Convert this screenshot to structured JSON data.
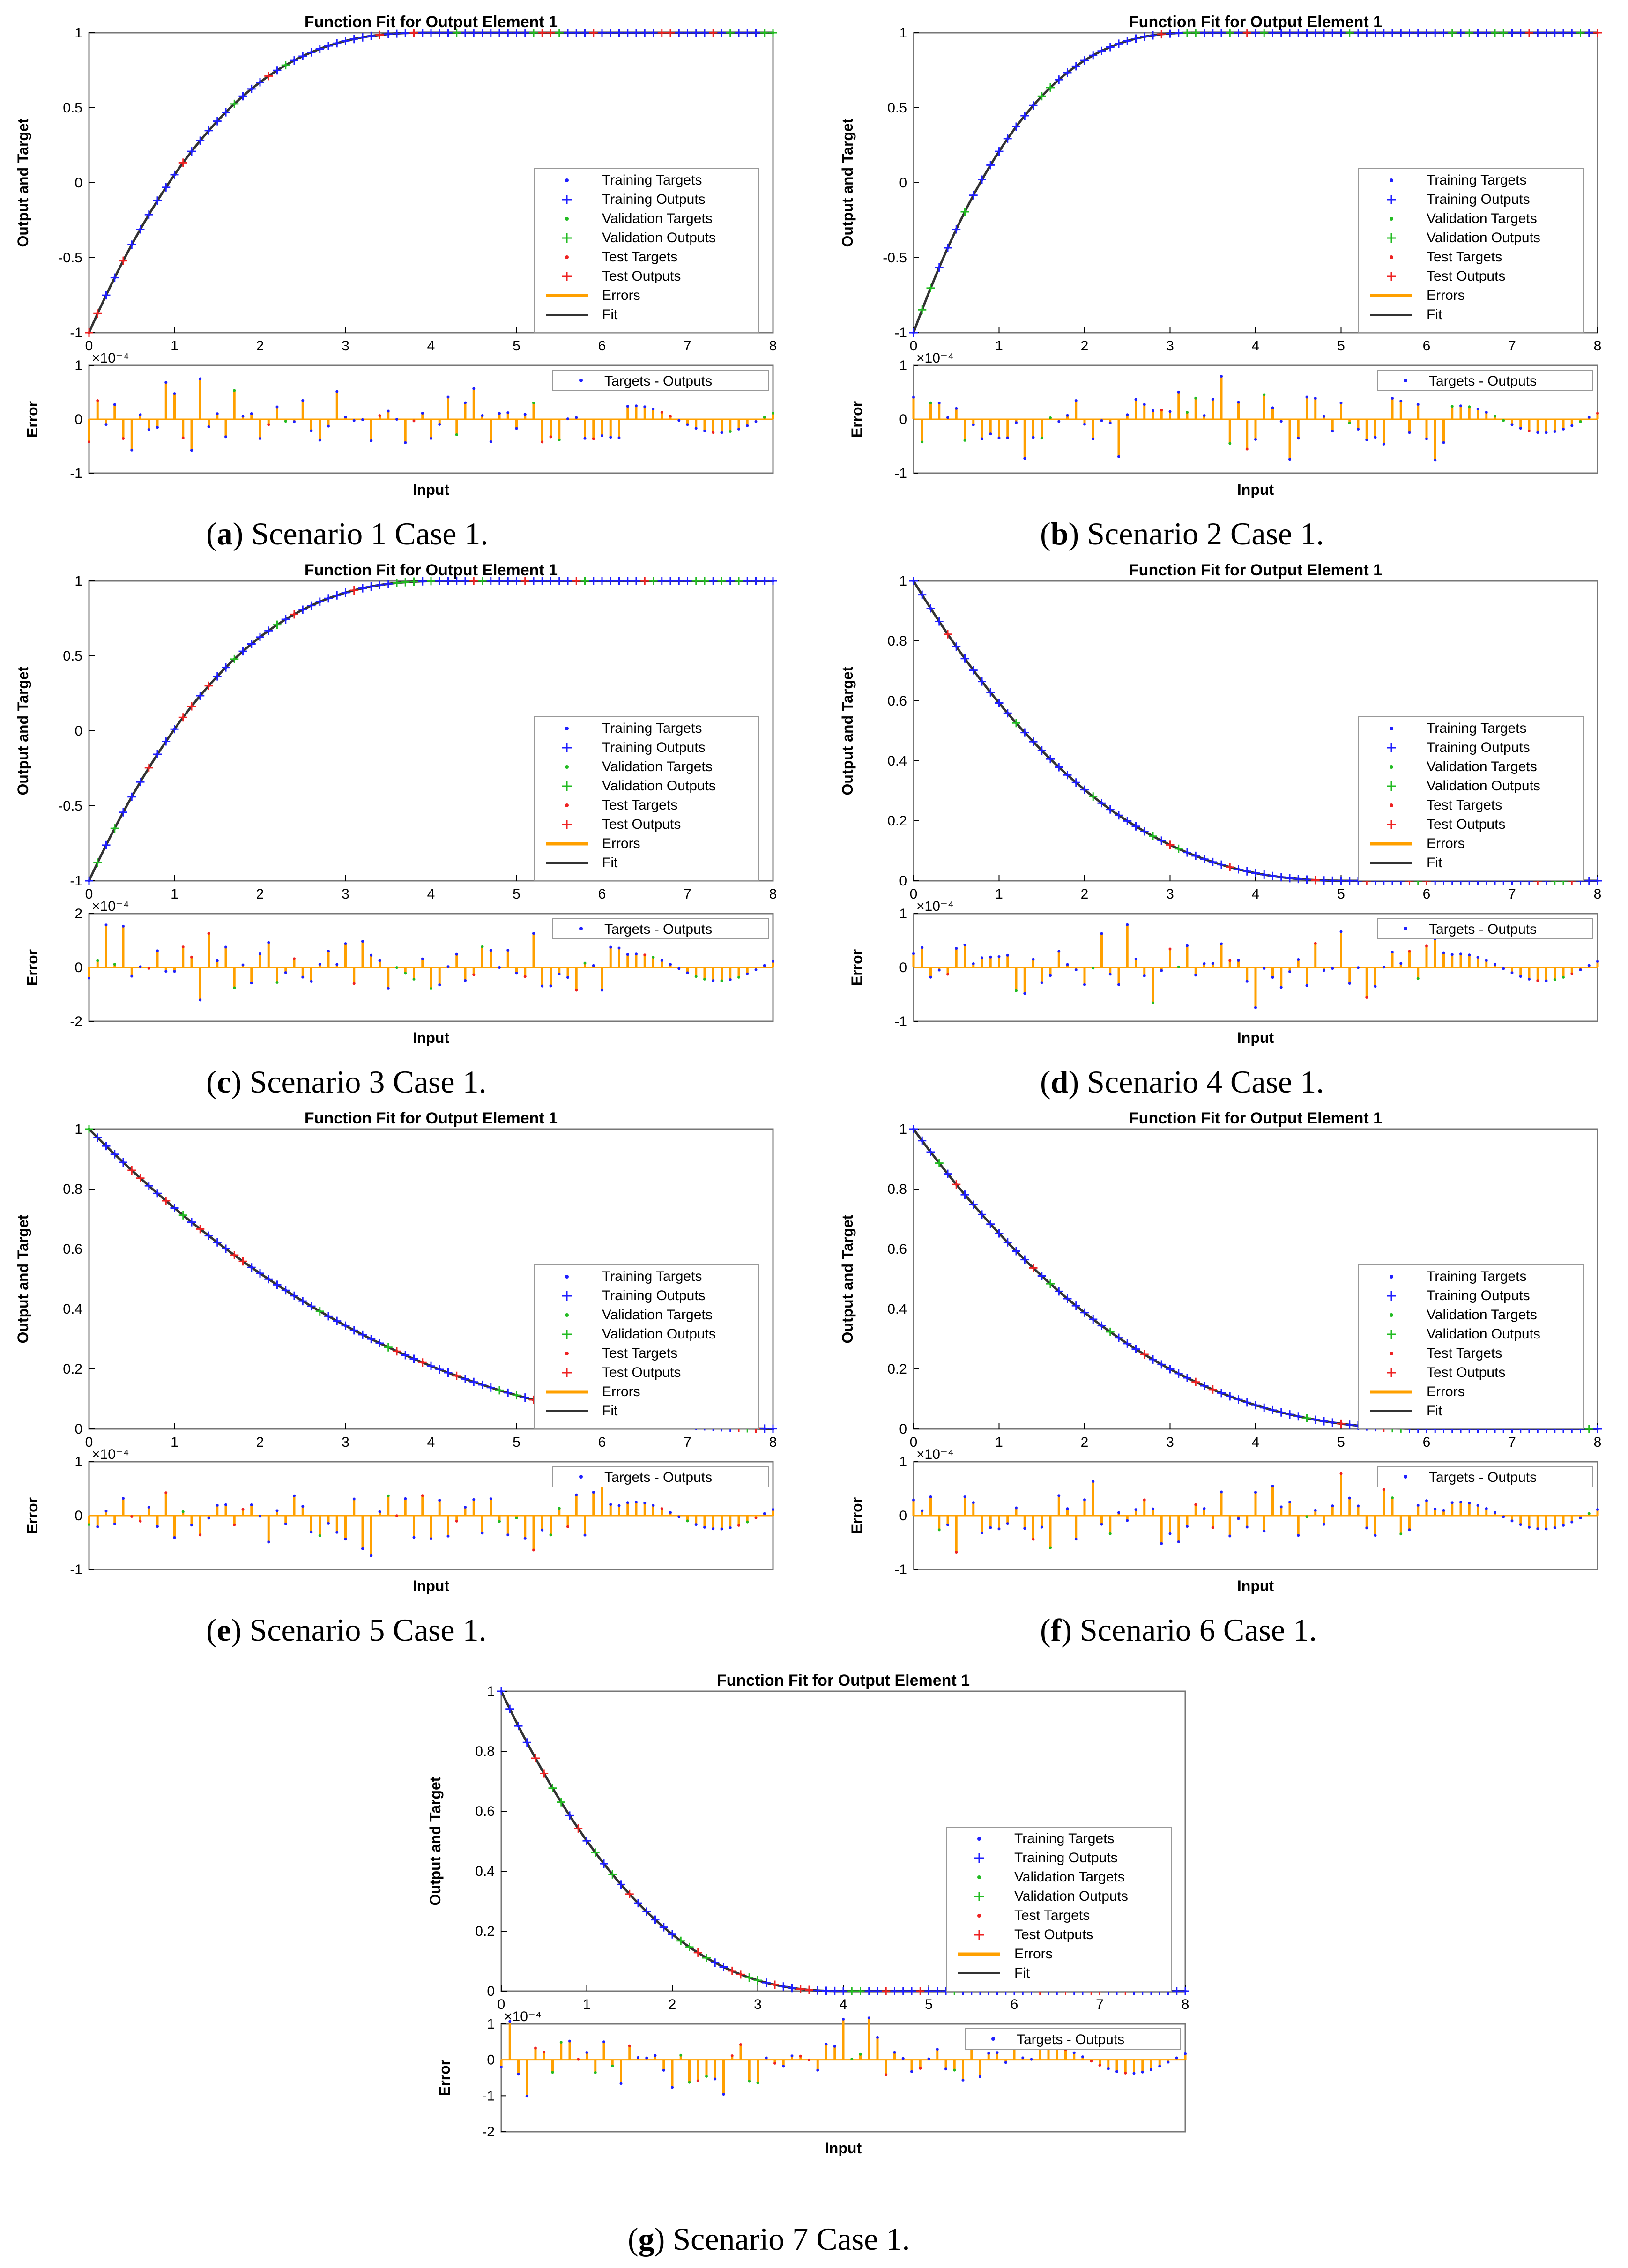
{
  "figure": {
    "colors": {
      "training": "#1f1fff",
      "validation": "#22bb22",
      "test": "#ee2222",
      "errors": "#ffa000",
      "fit": "#333333",
      "axis": "#000000"
    }
  },
  "chart_data": [
    {
      "id": "a",
      "type": "line",
      "title": "Function Fit for Output Element 1",
      "ylabel": "Output and Target",
      "xlabel": "Input",
      "err_ylabel": "Error",
      "err_scale": "×10⁻⁴",
      "xlim": [
        0,
        8
      ],
      "ylim": [
        -1,
        1
      ],
      "xticks": [
        "0",
        "1",
        "2",
        "3",
        "4",
        "5",
        "6",
        "7",
        "8"
      ],
      "yticks": [
        "-1",
        "-0.5",
        "0",
        "0.5",
        "1"
      ],
      "err_ylim": [
        -1,
        1
      ],
      "err_yticks": [
        "-1",
        "0",
        "1"
      ],
      "curve": "rise",
      "rate": 1.0,
      "legend": [
        "Training Targets",
        "Training Outputs",
        "Validation Targets",
        "Validation Outputs",
        "Test Targets",
        "Test Outputs",
        "Errors",
        "Fit"
      ],
      "err_legend": "Targets - Outputs",
      "caption_letter": "a",
      "caption_text": " Scenario 1 Case 1."
    },
    {
      "id": "b",
      "type": "line",
      "title": "Function Fit for Output Element 1",
      "ylabel": "Output and Target",
      "xlabel": "Input",
      "err_ylabel": "Error",
      "err_scale": "×10⁻⁴",
      "xlim": [
        0,
        8
      ],
      "ylim": [
        -1,
        1
      ],
      "xticks": [
        "0",
        "1",
        "2",
        "3",
        "4",
        "5",
        "6",
        "7",
        "8"
      ],
      "yticks": [
        "-1",
        "-0.5",
        "0",
        "0.5",
        "1"
      ],
      "err_ylim": [
        -1,
        1
      ],
      "err_yticks": [
        "-1",
        "0",
        "1"
      ],
      "curve": "rise",
      "rate": 1.2,
      "legend": [
        "Training Targets",
        "Training Outputs",
        "Validation Targets",
        "Validation Outputs",
        "Test Targets",
        "Test Outputs",
        "Errors",
        "Fit"
      ],
      "err_legend": "Targets - Outputs",
      "caption_letter": "b",
      "caption_text": " Scenario 2 Case 1."
    },
    {
      "id": "c",
      "type": "line",
      "title": "Function Fit for Output Element 1",
      "ylabel": "Output and Target",
      "xlabel": "Input",
      "err_ylabel": "Error",
      "err_scale": "×10⁻⁴",
      "xlim": [
        0,
        8
      ],
      "ylim": [
        -1,
        1
      ],
      "xticks": [
        "0",
        "1",
        "2",
        "3",
        "4",
        "5",
        "6",
        "7",
        "8"
      ],
      "yticks": [
        "-1",
        "-0.5",
        "0",
        "0.5",
        "1"
      ],
      "err_ylim": [
        -2,
        2
      ],
      "err_yticks": [
        "-2",
        "0",
        "2"
      ],
      "curve": "rise",
      "rate": 0.95,
      "legend": [
        "Training Targets",
        "Training Outputs",
        "Validation Targets",
        "Validation Outputs",
        "Test Targets",
        "Test Outputs",
        "Errors",
        "Fit"
      ],
      "err_legend": "Targets - Outputs",
      "caption_letter": "c",
      "caption_text": " Scenario 3 Case 1."
    },
    {
      "id": "d",
      "type": "line",
      "title": "Function Fit for Output Element 1",
      "ylabel": "Output and Target",
      "xlabel": "Input",
      "err_ylabel": "Error",
      "err_scale": "×10⁻⁴",
      "xlim": [
        0,
        8
      ],
      "ylim": [
        0,
        1
      ],
      "xticks": [
        "0",
        "1",
        "2",
        "3",
        "4",
        "5",
        "6",
        "7",
        "8"
      ],
      "yticks": [
        "0",
        "0.2",
        "0.4",
        "0.6",
        "0.8",
        "1"
      ],
      "err_ylim": [
        -1,
        1
      ],
      "err_yticks": [
        "-1",
        "0",
        "1"
      ],
      "curve": "decay",
      "rate": 0.9,
      "legend": [
        "Training Targets",
        "Training Outputs",
        "Validation Targets",
        "Validation Outputs",
        "Test Targets",
        "Test Outputs",
        "Errors",
        "Fit"
      ],
      "err_legend": "Targets - Outputs",
      "caption_letter": "d",
      "caption_text": " Scenario 4 Case 1."
    },
    {
      "id": "e",
      "type": "line",
      "title": "Function Fit for Output Element 1",
      "ylabel": "Output and Target",
      "xlabel": "Input",
      "err_ylabel": "Error",
      "err_scale": "×10⁻⁴",
      "xlim": [
        0,
        8
      ],
      "ylim": [
        0,
        1
      ],
      "xticks": [
        "0",
        "1",
        "2",
        "3",
        "4",
        "5",
        "6",
        "7",
        "8"
      ],
      "yticks": [
        "0",
        "0.2",
        "0.4",
        "0.6",
        "0.8",
        "1"
      ],
      "err_ylim": [
        -1,
        1
      ],
      "err_yticks": [
        "-1",
        "0",
        "1"
      ],
      "curve": "decay",
      "rate": 0.55,
      "legend": [
        "Training Targets",
        "Training Outputs",
        "Validation Targets",
        "Validation Outputs",
        "Test Targets",
        "Test Outputs",
        "Errors",
        "Fit"
      ],
      "err_legend": "Targets - Outputs",
      "caption_letter": "e",
      "caption_text": " Scenario 5 Case 1."
    },
    {
      "id": "f",
      "type": "line",
      "title": "Function Fit for Output Element 1",
      "ylabel": "Output and Target",
      "xlabel": "Input",
      "err_ylabel": "Error",
      "err_scale": "×10⁻⁴",
      "xlim": [
        0,
        8
      ],
      "ylim": [
        0,
        1
      ],
      "xticks": [
        "0",
        "1",
        "2",
        "3",
        "4",
        "5",
        "6",
        "7",
        "8"
      ],
      "yticks": [
        "0",
        "0.2",
        "0.4",
        "0.6",
        "0.8",
        "1"
      ],
      "err_ylim": [
        -1,
        1
      ],
      "err_yticks": [
        "-1",
        "0",
        "1"
      ],
      "curve": "decay",
      "rate": 0.75,
      "legend": [
        "Training Targets",
        "Training Outputs",
        "Validation Targets",
        "Validation Outputs",
        "Test Targets",
        "Test Outputs",
        "Errors",
        "Fit"
      ],
      "err_legend": "Targets - Outputs",
      "caption_letter": "f",
      "caption_text": " Scenario 6 Case 1."
    },
    {
      "id": "g",
      "type": "line",
      "title": "Function Fit for Output Element 1",
      "ylabel": "Output and Target",
      "xlabel": "Input",
      "err_ylabel": "Error",
      "err_scale": "×10⁻⁴",
      "xlim": [
        0,
        8
      ],
      "ylim": [
        0,
        1
      ],
      "xticks": [
        "0",
        "1",
        "2",
        "3",
        "4",
        "5",
        "6",
        "7",
        "8"
      ],
      "yticks": [
        "0",
        "0.2",
        "0.4",
        "0.6",
        "0.8",
        "1"
      ],
      "err_ylim": [
        -2,
        1
      ],
      "err_yticks": [
        "-2",
        "-1",
        "0",
        "1"
      ],
      "curve": "decay",
      "rate": 1.15,
      "legend": [
        "Training Targets",
        "Training Outputs",
        "Validation Targets",
        "Validation Outputs",
        "Test Targets",
        "Test Outputs",
        "Errors",
        "Fit"
      ],
      "err_legend": "Targets - Outputs",
      "caption_letter": "g",
      "caption_text": " Scenario 7 Case 1."
    }
  ]
}
